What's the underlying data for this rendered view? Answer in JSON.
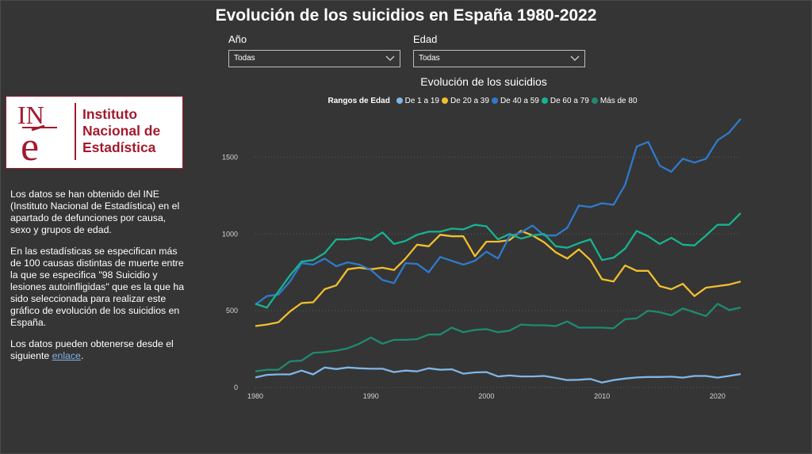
{
  "page": {
    "title": "Evolución de los suicidios en España 1980-2022",
    "filters": [
      {
        "label": "Año",
        "value": "Todas"
      },
      {
        "label": "Edad",
        "value": "Todas"
      }
    ],
    "logo": {
      "line1": "Instituto",
      "line2": "Nacional de",
      "line3": "Estadística"
    },
    "description": {
      "p1": "Los datos se han obtenido del INE (Instituto Nacional de Estadística) en el apartado de defunciones por causa, sexo y grupos de edad.",
      "p2": "En las estadísticas se especifican más de 100 causas distintas de muerte entre la que se especifica \"98 Suicidio y lesiones autoinfligidas\" que es la que ha sido seleccionada para realizar este gráfico de evolución de los suicidios en España.",
      "p3_text": "Los datos pueden obtenerse desde el siguiente ",
      "p3_link": "enlace",
      "p3_end": "."
    },
    "icons": {
      "dropdown": "chevron-down-icon"
    }
  },
  "chart_data": {
    "type": "line",
    "title": "Evolución de los suicidios",
    "legend_title": "Rangos de Edad",
    "legend_position": "top-center",
    "xlim": [
      1980,
      2022
    ],
    "ylim": [
      0,
      1750
    ],
    "x_ticks": [
      1980,
      1990,
      2000,
      2010,
      2020
    ],
    "y_ticks": [
      0,
      500,
      1000,
      1500
    ],
    "grid": true,
    "x": [
      1980,
      1981,
      1982,
      1983,
      1984,
      1985,
      1986,
      1987,
      1988,
      1989,
      1990,
      1991,
      1992,
      1993,
      1994,
      1995,
      1996,
      1997,
      1998,
      1999,
      2000,
      2001,
      2002,
      2003,
      2004,
      2005,
      2006,
      2007,
      2008,
      2009,
      2010,
      2011,
      2012,
      2013,
      2014,
      2015,
      2016,
      2017,
      2018,
      2019,
      2020,
      2021,
      2022
    ],
    "series": [
      {
        "name": "De 1 a 19",
        "color": "#7fb6e6",
        "values": [
          65,
          82,
          85,
          85,
          110,
          85,
          130,
          120,
          130,
          125,
          122,
          122,
          100,
          110,
          105,
          125,
          115,
          118,
          90,
          98,
          100,
          72,
          78,
          72,
          72,
          75,
          62,
          48,
          50,
          55,
          32,
          48,
          58,
          65,
          68,
          68,
          70,
          64,
          75,
          75,
          64,
          75,
          87
        ]
      },
      {
        "name": "De 20 a 39",
        "color": "#f2bf2e",
        "values": [
          400,
          410,
          425,
          495,
          550,
          555,
          640,
          665,
          770,
          780,
          770,
          780,
          765,
          840,
          930,
          920,
          995,
          985,
          985,
          855,
          950,
          950,
          960,
          1020,
          990,
          945,
          880,
          840,
          900,
          830,
          705,
          690,
          795,
          760,
          760,
          660,
          640,
          675,
          595,
          650,
          660,
          670,
          690
        ]
      },
      {
        "name": "De 40 a 59",
        "color": "#2e7acc",
        "values": [
          540,
          595,
          605,
          690,
          810,
          800,
          840,
          790,
          815,
          800,
          765,
          700,
          680,
          810,
          805,
          750,
          850,
          825,
          800,
          825,
          885,
          840,
          985,
          1010,
          1055,
          990,
          990,
          1040,
          1185,
          1175,
          1200,
          1190,
          1320,
          1570,
          1600,
          1445,
          1405,
          1490,
          1465,
          1490,
          1610,
          1660,
          1750
        ]
      },
      {
        "name": "De 60 a 79",
        "color": "#17b390",
        "values": [
          545,
          520,
          625,
          730,
          820,
          830,
          875,
          965,
          965,
          975,
          960,
          1010,
          935,
          955,
          995,
          1015,
          1015,
          1035,
          1030,
          1060,
          1050,
          965,
          1000,
          970,
          990,
          1000,
          920,
          910,
          940,
          965,
          830,
          845,
          905,
          1020,
          985,
          935,
          975,
          930,
          925,
          990,
          1060,
          1060,
          1135
        ]
      },
      {
        "name": "Más de 80",
        "color": "#1f8a6f",
        "values": [
          105,
          115,
          115,
          170,
          175,
          225,
          230,
          240,
          255,
          285,
          325,
          285,
          310,
          310,
          315,
          345,
          345,
          390,
          360,
          375,
          380,
          360,
          370,
          410,
          405,
          405,
          400,
          430,
          390,
          390,
          390,
          385,
          445,
          450,
          500,
          490,
          470,
          515,
          490,
          465,
          545,
          505,
          520
        ]
      }
    ]
  }
}
